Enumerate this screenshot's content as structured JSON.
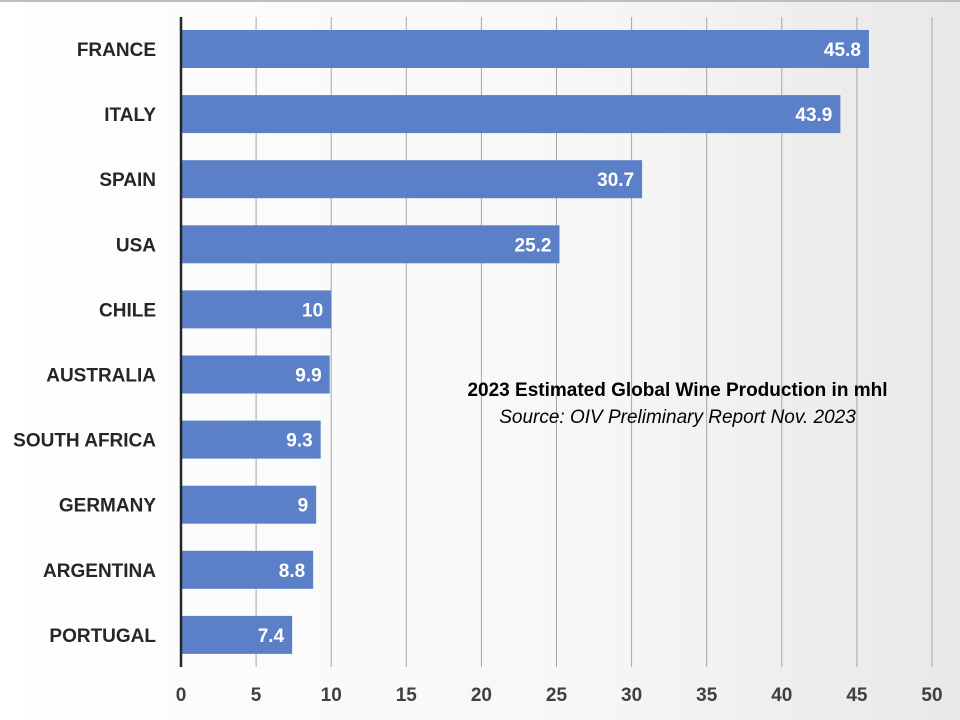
{
  "chart_data": {
    "type": "bar",
    "orientation": "horizontal",
    "title": "2023 Estimated Global Wine Production in mhl",
    "subtitle": "Source: OIV Preliminary Report Nov. 2023",
    "categories": [
      "FRANCE",
      "ITALY",
      "SPAIN",
      "USA",
      "CHILE",
      "AUSTRALIA",
      "SOUTH AFRICA",
      "GERMANY",
      "ARGENTINA",
      "PORTUGAL"
    ],
    "values": [
      45.8,
      43.9,
      30.7,
      25.2,
      10,
      9.9,
      9.3,
      9,
      8.8,
      7.4
    ],
    "data_labels": [
      "45.8",
      "43.9",
      "30.7",
      "25.2",
      "10",
      "9.9",
      "9.3",
      "9",
      "8.8",
      "7.4"
    ],
    "xlim": [
      0,
      50
    ],
    "xticks": [
      "0",
      "5",
      "10",
      "15",
      "20",
      "25",
      "30",
      "35",
      "40",
      "45",
      "50"
    ],
    "grid": true,
    "bar_color": "#5b80c8"
  }
}
